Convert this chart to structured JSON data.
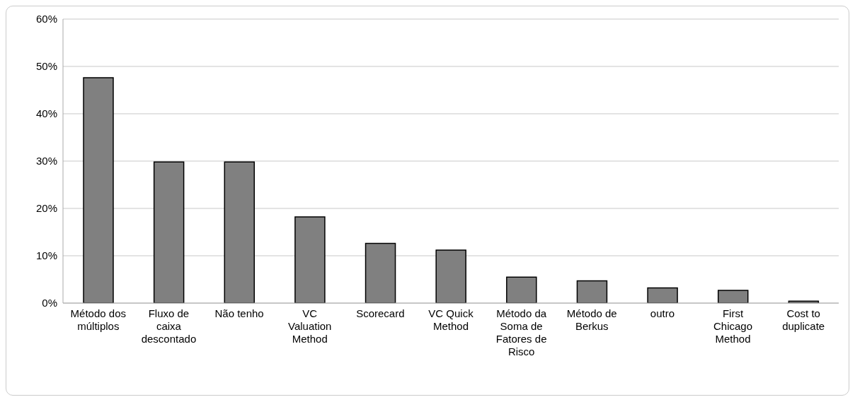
{
  "chart_data": {
    "type": "bar",
    "categories": [
      "Método dos múltiplos",
      "Fluxo de caixa descontado",
      "Não tenho",
      "VC Valuation Method",
      "Scorecard",
      "VC Quick Method",
      "Método da Soma de Fatores de Risco",
      "Método de Berkus",
      "outro",
      "First Chicago Method",
      "Cost to duplicate"
    ],
    "values": [
      47.6,
      29.8,
      29.8,
      18.2,
      12.6,
      11.2,
      5.5,
      4.7,
      3.2,
      2.7,
      0.4
    ],
    "color": "#808080",
    "ylim": [
      0,
      60
    ],
    "yticks": [
      {
        "value": 0,
        "label": "0%"
      },
      {
        "value": 10,
        "label": "10%"
      },
      {
        "value": 20,
        "label": "20%"
      },
      {
        "value": 30,
        "label": "30%"
      },
      {
        "value": 40,
        "label": "40%"
      },
      {
        "value": 50,
        "label": "50%"
      },
      {
        "value": 60,
        "label": "60%"
      }
    ],
    "grid": "y"
  }
}
